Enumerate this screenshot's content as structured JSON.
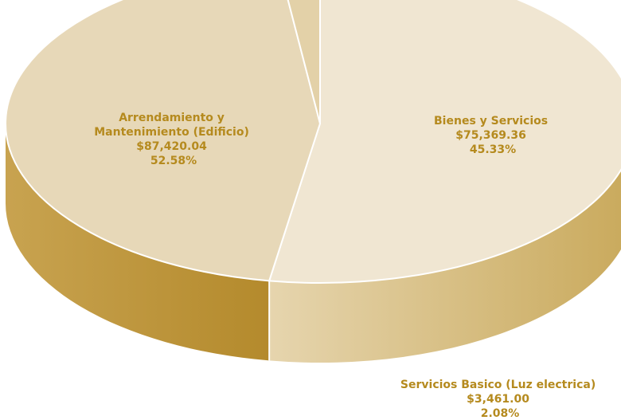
{
  "chart_data": {
    "type": "pie",
    "title": "",
    "three_d": true,
    "colors": {
      "label": "#b58a1e",
      "separator": "#ffffff"
    },
    "slices": [
      {
        "name_lines": [
          "Arrendamiento y",
          "Mantenimiento (Edificio)"
        ],
        "value_label": "$87,420.04",
        "percent_label": "52.58%",
        "value": 87420.04,
        "percent": 52.58,
        "top_color": "#f0e6d2",
        "side_light": "#e6d5ae",
        "side_dark": "#c9a95b"
      },
      {
        "name_lines": [
          "Bienes y Servicios"
        ],
        "value_label": "$75,369.36",
        "percent_label": "45.33%",
        "value": 75369.36,
        "percent": 45.33,
        "top_color": "#e7d8b8",
        "side_light": "#c8a350",
        "side_dark": "#b48a2c"
      },
      {
        "name_lines": [
          "Servicios Basico (Luz electrica)"
        ],
        "value_label": "$3,461.00",
        "percent_label": "2.08%",
        "value": 3461.0,
        "percent": 2.08,
        "top_color": "#e3d1a8",
        "side_light": "#c29a45",
        "side_dark": "#b5902f"
      }
    ]
  }
}
